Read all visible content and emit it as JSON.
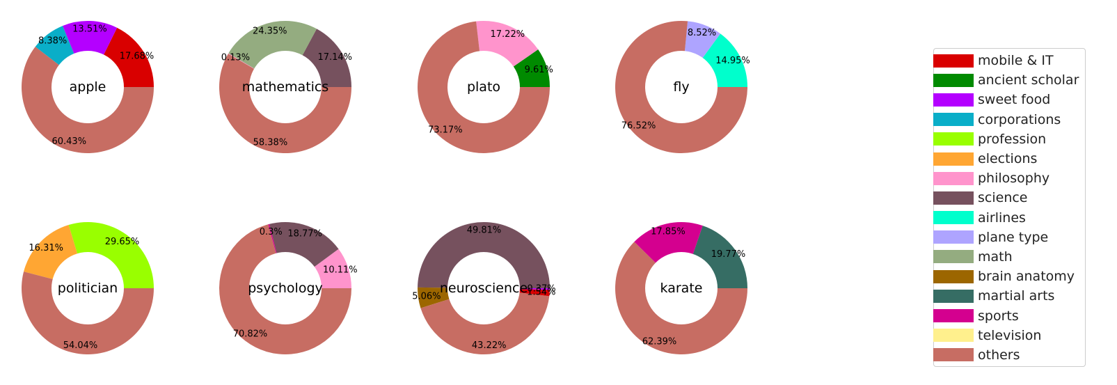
{
  "colors": {
    "mobile & IT": "#d90000",
    "ancient scholar": "#008a00",
    "sweet food": "#b400ff",
    "corporations": "#0aaec8",
    "profession": "#99ff00",
    "elections": "#ffa633",
    "philosophy": "#ff94cc",
    "science": "#76515e",
    "airlines": "#00ffcc",
    "plane type": "#aea4ff",
    "math": "#94ac80",
    "brain anatomy": "#9c6600",
    "martial arts": "#366d64",
    "sports": "#d4008f",
    "television": "#fff08d",
    "others": "#c76d63"
  },
  "legend": {
    "items": [
      "mobile & IT",
      "ancient scholar",
      "sweet food",
      "corporations",
      "profession",
      "elections",
      "philosophy",
      "science",
      "airlines",
      "plane type",
      "math",
      "brain anatomy",
      "martial arts",
      "sports",
      "television",
      "others"
    ]
  },
  "chart_data": [
    {
      "type": "pie",
      "title": "apple",
      "slices": [
        {
          "category": "mobile & IT",
          "value": 17.68,
          "label": "17.68%"
        },
        {
          "category": "sweet food",
          "value": 13.51,
          "label": "13.51%"
        },
        {
          "category": "corporations",
          "value": 8.38,
          "label": "8.38%"
        },
        {
          "category": "others",
          "value": 60.43,
          "label": "60.43%"
        }
      ]
    },
    {
      "type": "pie",
      "title": "mathematics",
      "slices": [
        {
          "category": "science",
          "value": 17.14,
          "label": "17.14%"
        },
        {
          "category": "math",
          "value": 24.35,
          "label": "24.35%"
        },
        {
          "category": "philosophy",
          "value": 0.13,
          "label": "0.13%"
        },
        {
          "category": "others",
          "value": 58.38,
          "label": "58.38%"
        }
      ]
    },
    {
      "type": "pie",
      "title": "plato",
      "slices": [
        {
          "category": "ancient scholar",
          "value": 9.61,
          "label": "9.61%"
        },
        {
          "category": "philosophy",
          "value": 17.22,
          "label": "17.22%"
        },
        {
          "category": "others",
          "value": 73.17,
          "label": "73.17%"
        }
      ]
    },
    {
      "type": "pie",
      "title": "fly",
      "slices": [
        {
          "category": "airlines",
          "value": 14.95,
          "label": "14.95%"
        },
        {
          "category": "plane type",
          "value": 8.52,
          "label": "8.52%"
        },
        {
          "category": "others",
          "value": 76.52,
          "label": "76.52%"
        }
      ]
    },
    {
      "type": "pie",
      "title": "politician",
      "slices": [
        {
          "category": "profession",
          "value": 29.65,
          "label": "29.65%"
        },
        {
          "category": "elections",
          "value": 16.31,
          "label": "16.31%"
        },
        {
          "category": "others",
          "value": 54.04,
          "label": "54.04%"
        }
      ]
    },
    {
      "type": "pie",
      "title": "psychology",
      "slices": [
        {
          "category": "philosophy",
          "value": 10.11,
          "label": "10.11%"
        },
        {
          "category": "science",
          "value": 18.77,
          "label": "18.77%"
        },
        {
          "category": "sports",
          "value": 0.3,
          "label": "0.3%"
        },
        {
          "category": "others",
          "value": 70.82,
          "label": "70.82%"
        }
      ]
    },
    {
      "type": "pie",
      "title": "neuroscience",
      "slices": [
        {
          "category": "science",
          "value": 49.81,
          "label": "49.81%"
        },
        {
          "category": "brain anatomy",
          "value": 5.06,
          "label": "5.06%"
        },
        {
          "category": "others",
          "value": 43.22,
          "label": "43.22%"
        },
        {
          "category": "mobile & IT",
          "value": 1.54,
          "label": "1.54%"
        },
        {
          "category": "sweet food",
          "value": 0.37,
          "label": "0.37%"
        }
      ]
    },
    {
      "type": "pie",
      "title": "karate",
      "slices": [
        {
          "category": "martial arts",
          "value": 19.77,
          "label": "19.77%"
        },
        {
          "category": "sports",
          "value": 17.85,
          "label": "17.85%"
        },
        {
          "category": "others",
          "value": 62.39,
          "label": "62.39%"
        }
      ]
    }
  ]
}
